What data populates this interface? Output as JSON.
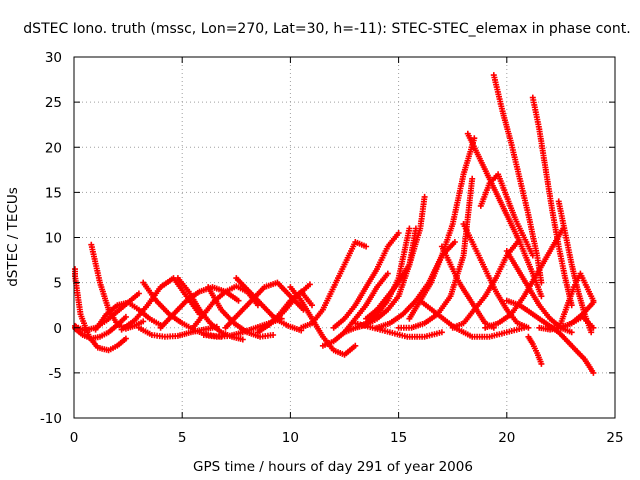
{
  "chart_data": {
    "type": "scatter",
    "title": "dSTEC Iono. truth (mssc, Lon=270, Lat=30, h=-11): STEC-STEC_elemax in phase cont.",
    "xlabel": "GPS time / hours of day 291 of year 2006",
    "ylabel": "dSTEC  / TECUs",
    "xlim": [
      0,
      25
    ],
    "ylim": [
      -10,
      30
    ],
    "xticks": [
      "0",
      "5",
      "10",
      "15",
      "20",
      "25"
    ],
    "yticks": [
      "-10",
      "-5",
      "0",
      "5",
      "10",
      "15",
      "20",
      "25",
      "30"
    ],
    "grid": true,
    "marker": "plus",
    "series_color": "#ff0000",
    "series": [
      {
        "x": [
          0.0,
          0.3,
          0.7,
          1.1,
          1.6,
          2.0,
          2.4
        ],
        "y": [
          6.5,
          1.5,
          -1.0,
          -2.2,
          -2.5,
          -2.0,
          -1.2
        ]
      },
      {
        "x": [
          0.0,
          0.4,
          0.8,
          1.2,
          1.6,
          2.0,
          2.4
        ],
        "y": [
          0.0,
          -0.8,
          -1.2,
          -1.0,
          -0.5,
          0.3,
          1.2
        ]
      },
      {
        "x": [
          0.0,
          0.5,
          1.0,
          1.5,
          2.0,
          2.5,
          3.0
        ],
        "y": [
          0.2,
          -0.3,
          0.0,
          0.8,
          1.8,
          2.8,
          3.8
        ]
      },
      {
        "x": [
          0.8,
          1.2,
          1.6,
          2.0,
          2.4,
          2.8,
          3.2
        ],
        "y": [
          9.2,
          5.0,
          2.0,
          0.4,
          -0.1,
          0.2,
          0.7
        ]
      },
      {
        "x": [
          1.0,
          1.5,
          2.0,
          2.5,
          3.0,
          3.5,
          4.0
        ],
        "y": [
          -0.2,
          1.5,
          2.5,
          2.8,
          2.0,
          1.0,
          0.3
        ]
      },
      {
        "x": [
          2.2,
          2.8,
          3.4,
          4.0,
          4.6,
          5.2,
          5.8
        ],
        "y": [
          -0.2,
          0.8,
          2.5,
          4.5,
          5.5,
          3.5,
          1.5
        ]
      },
      {
        "x": [
          3.0,
          3.6,
          4.2,
          4.8,
          5.4,
          6.0,
          6.6
        ],
        "y": [
          0.0,
          -0.8,
          -1.0,
          -0.9,
          -0.5,
          -0.2,
          0.1
        ]
      },
      {
        "x": [
          3.2,
          3.8,
          4.4,
          5.0,
          5.6,
          6.2,
          6.8
        ],
        "y": [
          5.0,
          3.0,
          1.5,
          0.5,
          -0.3,
          -0.8,
          -1.0
        ]
      },
      {
        "x": [
          4.0,
          4.6,
          5.2,
          5.8,
          6.4,
          7.0,
          7.6
        ],
        "y": [
          0.0,
          1.5,
          3.0,
          4.0,
          4.5,
          4.0,
          3.0
        ]
      },
      {
        "x": [
          4.8,
          5.3,
          5.8,
          6.3,
          6.8,
          7.3,
          7.8
        ],
        "y": [
          5.5,
          4.0,
          2.0,
          0.5,
          -0.5,
          -1.0,
          -1.3
        ]
      },
      {
        "x": [
          5.5,
          6.0,
          6.5,
          7.0,
          7.5,
          8.0,
          8.5
        ],
        "y": [
          0.0,
          1.5,
          3.0,
          4.0,
          4.6,
          4.0,
          2.5
        ]
      },
      {
        "x": [
          6.0,
          6.6,
          7.2,
          7.8,
          8.4,
          9.0,
          9.6
        ],
        "y": [
          -0.8,
          -1.0,
          -0.9,
          -0.5,
          0.0,
          0.5,
          1.0
        ]
      },
      {
        "x": [
          6.2,
          6.8,
          7.4,
          8.0,
          8.6,
          9.2
        ],
        "y": [
          4.5,
          2.0,
          0.5,
          -0.5,
          -1.0,
          -0.8
        ]
      },
      {
        "x": [
          7.0,
          7.6,
          8.2,
          8.8,
          9.4,
          10.0,
          10.6
        ],
        "y": [
          0.0,
          1.5,
          3.0,
          4.5,
          5.0,
          3.5,
          2.0
        ]
      },
      {
        "x": [
          7.5,
          8.1,
          8.7,
          9.3,
          9.9,
          10.5
        ],
        "y": [
          5.5,
          4.0,
          2.5,
          1.0,
          0.2,
          -0.3
        ]
      },
      {
        "x": [
          8.5,
          9.1,
          9.7,
          10.3,
          10.9
        ],
        "y": [
          -0.5,
          0.5,
          1.8,
          3.5,
          4.8
        ]
      },
      {
        "x": [
          9.0,
          9.5,
          10.0,
          10.5,
          11.0
        ],
        "y": [
          0.3,
          1.5,
          3.0,
          4.0,
          2.5
        ]
      },
      {
        "x": [
          10.0,
          10.5,
          11.0,
          11.5,
          12.0,
          12.5,
          13.0
        ],
        "y": [
          4.5,
          3.0,
          1.0,
          -1.0,
          -2.5,
          -3.0,
          -2.0
        ]
      },
      {
        "x": [
          10.5,
          11.0,
          11.5,
          12.0,
          12.5,
          13.0,
          13.5
        ],
        "y": [
          0.0,
          0.5,
          2.0,
          4.5,
          7.0,
          9.5,
          9.0
        ]
      },
      {
        "x": [
          11.5,
          12.0,
          12.5,
          13.0,
          13.5,
          14.0,
          14.5
        ],
        "y": [
          -2.0,
          -1.5,
          -0.5,
          1.0,
          2.5,
          4.5,
          6.0
        ]
      },
      {
        "x": [
          12.0,
          12.5,
          13.0,
          13.5,
          14.0,
          14.5,
          15.0
        ],
        "y": [
          0.0,
          1.0,
          2.5,
          4.5,
          6.5,
          9.0,
          10.5
        ]
      },
      {
        "x": [
          12.5,
          13.0,
          13.5,
          14.0,
          14.5,
          15.0,
          15.5
        ],
        "y": [
          -0.5,
          0.0,
          0.5,
          1.5,
          3.0,
          5.5,
          11.0
        ]
      },
      {
        "x": [
          13.0,
          13.5,
          14.0,
          14.5,
          15.0,
          15.5,
          15.8
        ],
        "y": [
          0.0,
          0.3,
          1.0,
          2.0,
          3.5,
          7.0,
          11.0
        ]
      },
      {
        "x": [
          13.5,
          14.0,
          14.5,
          15.0,
          15.5,
          16.0,
          16.2
        ],
        "y": [
          1.0,
          2.0,
          3.5,
          5.0,
          7.0,
          11.0,
          14.5
        ]
      },
      {
        "x": [
          13.0,
          13.8,
          14.6,
          15.4,
          16.2,
          17.0
        ],
        "y": [
          0.5,
          0.0,
          -0.5,
          -1.0,
          -1.0,
          -0.5
        ]
      },
      {
        "x": [
          14.0,
          14.6,
          15.2,
          15.8,
          16.4,
          17.0,
          17.6
        ],
        "y": [
          0.0,
          0.5,
          1.5,
          3.0,
          5.0,
          8.0,
          9.5
        ]
      },
      {
        "x": [
          15.0,
          15.6,
          16.2,
          16.8,
          17.4,
          18.0,
          18.4
        ],
        "y": [
          0.0,
          0.0,
          0.5,
          1.5,
          3.5,
          8.0,
          16.5
        ]
      },
      {
        "x": [
          15.5,
          16.0,
          16.5,
          17.0,
          17.5,
          18.0,
          18.5
        ],
        "y": [
          1.0,
          3.0,
          5.0,
          8.0,
          11.5,
          17.0,
          21.0
        ]
      },
      {
        "x": [
          16.0,
          16.8,
          17.6,
          18.4,
          19.2,
          20.0,
          20.8
        ],
        "y": [
          3.0,
          1.5,
          0.0,
          -1.0,
          -1.0,
          -0.5,
          0.0
        ]
      },
      {
        "x": [
          17.0,
          17.4,
          17.8,
          18.2,
          18.6,
          19.0,
          19.4
        ],
        "y": [
          9.0,
          7.0,
          5.0,
          3.5,
          2.0,
          0.5,
          0.0
        ]
      },
      {
        "x": [
          17.5,
          18.0,
          18.5,
          19.0,
          19.5,
          20.0,
          20.5
        ],
        "y": [
          0.0,
          0.5,
          2.0,
          3.5,
          5.5,
          8.0,
          9.5
        ]
      },
      {
        "x": [
          18.0,
          18.5,
          19.0,
          19.5,
          20.0,
          20.5,
          21.0
        ],
        "y": [
          11.5,
          9.0,
          6.5,
          4.0,
          2.0,
          0.5,
          0.0
        ]
      },
      {
        "x": [
          18.2,
          18.8,
          19.4,
          20.0,
          20.6,
          21.2,
          21.6
        ],
        "y": [
          21.5,
          18.5,
          15.5,
          12.5,
          9.5,
          6.0,
          3.5
        ]
      },
      {
        "x": [
          18.8,
          19.2,
          19.6,
          20.0,
          20.4,
          20.8,
          21.2
        ],
        "y": [
          13.5,
          16.0,
          17.0,
          14.5,
          12.0,
          10.0,
          8.0
        ]
      },
      {
        "x": [
          19.4,
          19.8,
          20.2,
          20.6,
          21.0,
          21.4,
          21.6
        ],
        "y": [
          28.0,
          24.0,
          20.5,
          16.5,
          12.5,
          8.0,
          5.0
        ]
      },
      {
        "x": [
          19.0,
          19.6,
          20.2,
          20.8,
          21.4,
          22.0,
          22.6
        ],
        "y": [
          0.0,
          0.5,
          1.5,
          3.5,
          6.0,
          8.5,
          11.0
        ]
      },
      {
        "x": [
          20.0,
          20.5,
          21.0,
          21.5,
          22.0,
          22.5,
          23.0
        ],
        "y": [
          8.5,
          6.5,
          4.5,
          2.5,
          1.0,
          0.0,
          -0.5
        ]
      },
      {
        "x": [
          21.2,
          21.5,
          21.8,
          22.1,
          22.4,
          22.7,
          23.0
        ],
        "y": [
          25.5,
          22.0,
          17.5,
          13.0,
          9.0,
          5.5,
          2.5
        ]
      },
      {
        "x": [
          21.0,
          21.2,
          21.4,
          21.6
        ],
        "y": [
          -1.0,
          -1.8,
          -2.8,
          -4.0
        ]
      },
      {
        "x": [
          21.5,
          22.0,
          22.5,
          23.0,
          23.5,
          24.0
        ],
        "y": [
          0.0,
          -0.2,
          0.0,
          0.5,
          1.5,
          2.8
        ]
      },
      {
        "x": [
          22.0,
          22.5,
          23.0,
          23.5,
          24.0
        ],
        "y": [
          0.0,
          0.0,
          0.5,
          1.2,
          0.0
        ]
      },
      {
        "x": [
          22.4,
          22.7,
          23.0,
          23.3,
          23.6,
          23.9
        ],
        "y": [
          14.0,
          10.5,
          7.0,
          4.0,
          1.5,
          -0.5
        ]
      },
      {
        "x": [
          22.5,
          22.8,
          23.1,
          23.4,
          23.7,
          24.0
        ],
        "y": [
          0.5,
          2.5,
          4.5,
          6.0,
          4.5,
          3.0
        ]
      },
      {
        "x": [
          20.0,
          20.6,
          21.2,
          21.8,
          22.4,
          23.0,
          23.6,
          24.0
        ],
        "y": [
          3.0,
          2.5,
          1.5,
          0.5,
          -0.5,
          -2.0,
          -3.5,
          -5.0
        ]
      }
    ]
  }
}
